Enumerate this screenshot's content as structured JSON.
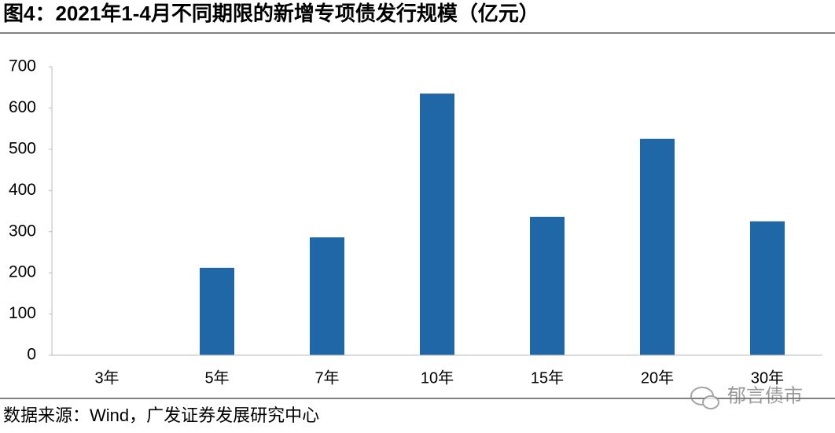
{
  "chart_data": {
    "type": "bar",
    "title": "图4：2021年1-4月不同期限的新增专项债发行规模（亿元）",
    "categories": [
      "3年",
      "5年",
      "7年",
      "10年",
      "15年",
      "20年",
      "30年"
    ],
    "values": [
      0,
      212,
      286,
      635,
      336,
      525,
      325
    ],
    "color": "#1f67a6",
    "ylim": [
      0,
      700
    ],
    "yticks": [
      0,
      100,
      200,
      300,
      400,
      500,
      600,
      700
    ],
    "grid": false,
    "source": "数据来源：Wind，广发证券发展研究中心",
    "watermark": "郁言债市"
  }
}
